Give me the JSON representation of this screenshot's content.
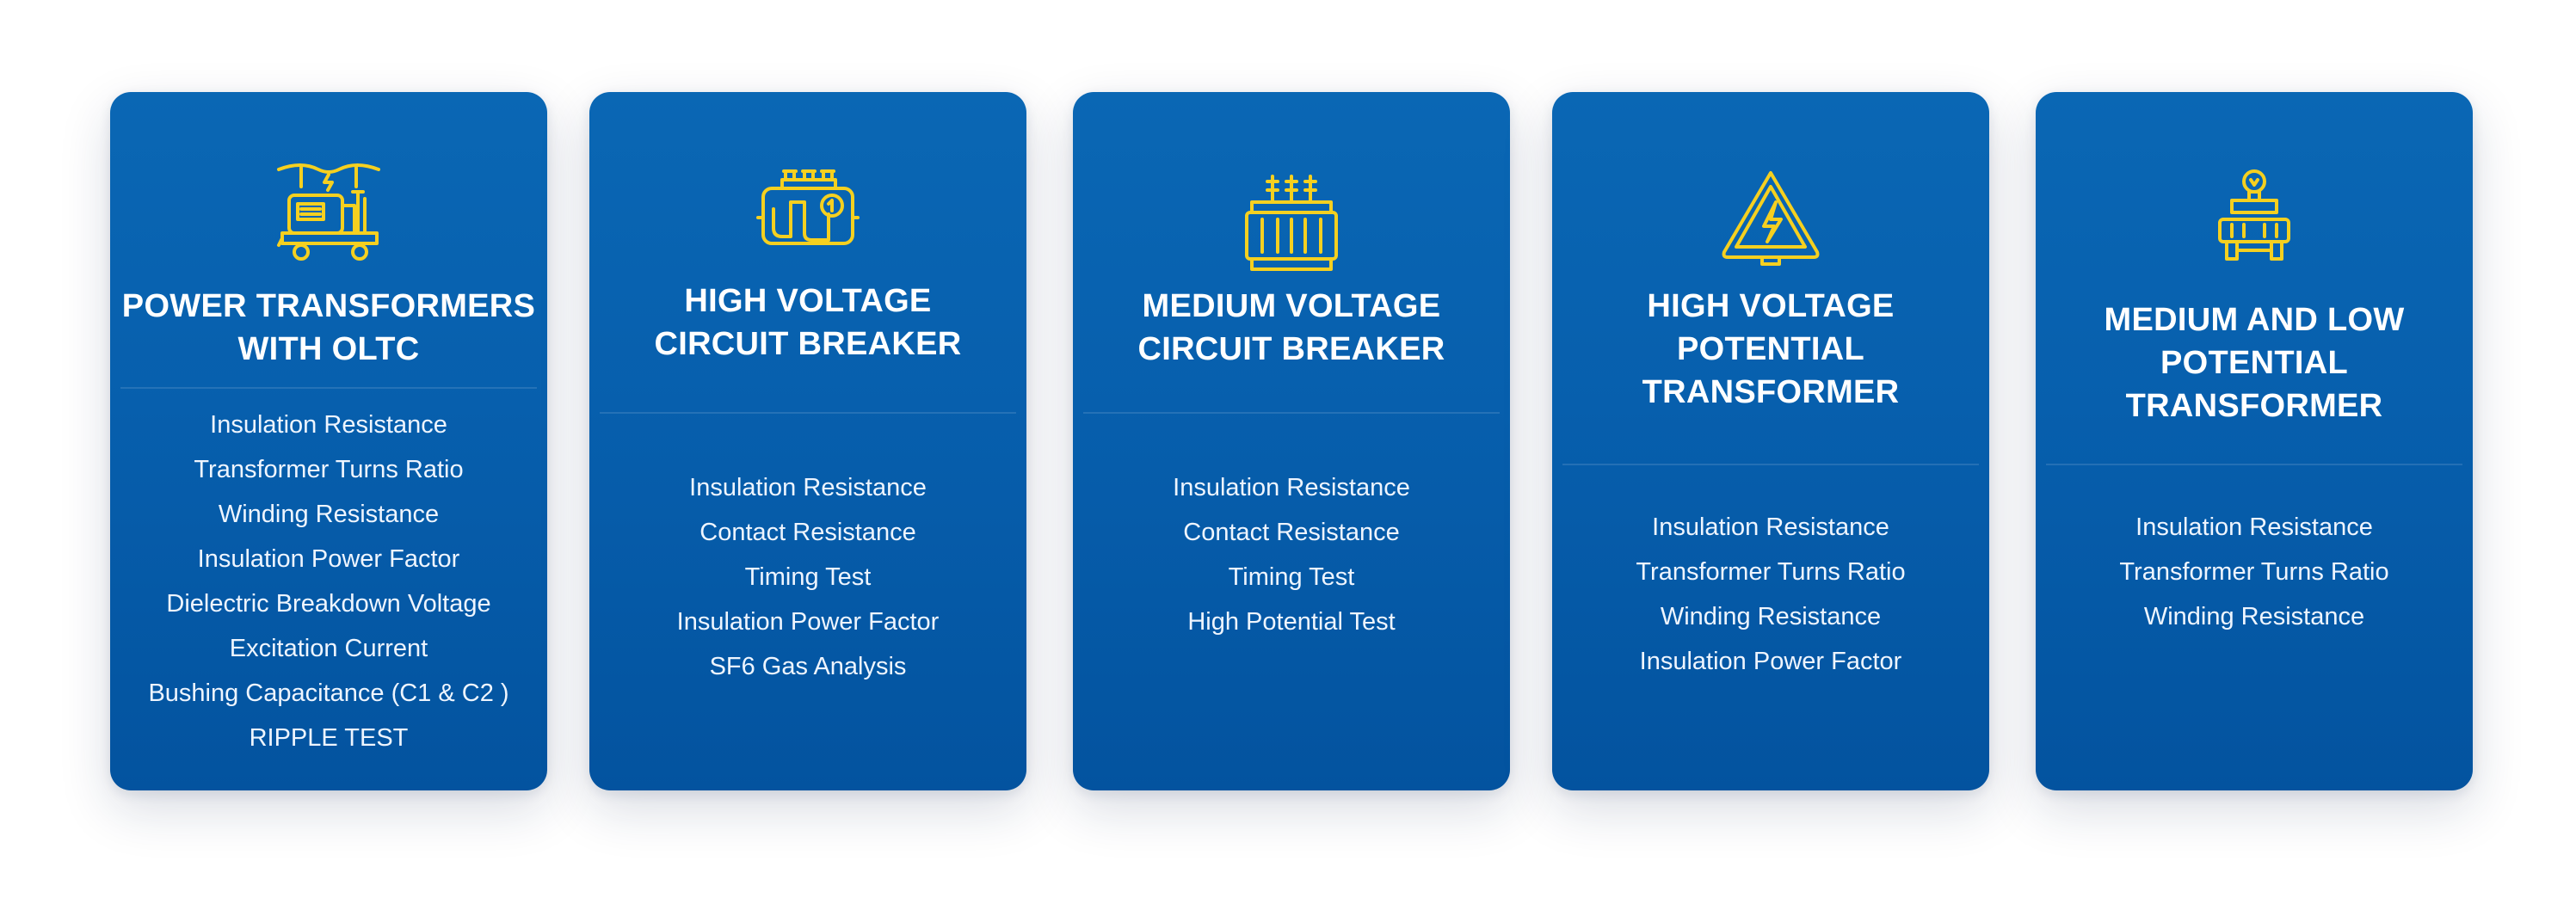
{
  "cards": [
    {
      "icon": "mobile-generator-icon",
      "title_lines": [
        "POWER TRANSFORMERS",
        "WITH OLTC"
      ],
      "items": [
        "Insulation Resistance",
        "Transformer Turns Ratio",
        "Winding Resistance",
        "Insulation Power Factor",
        "Dielectric Breakdown Voltage",
        "Excitation Current",
        "Bushing Capacitance (C1 & C2 )",
        "RIPPLE TEST"
      ]
    },
    {
      "icon": "circuit-breaker-icon",
      "title_lines": [
        "HIGH VOLTAGE",
        "CIRCUIT BREAKER"
      ],
      "items": [
        "Insulation Resistance",
        "Contact Resistance",
        "Timing Test",
        "Insulation Power Factor",
        "SF6 Gas Analysis"
      ]
    },
    {
      "icon": "transformer-icon",
      "title_lines": [
        "MEDIUM VOLTAGE",
        "CIRCUIT BREAKER"
      ],
      "items": [
        "Insulation Resistance",
        "Contact Resistance",
        "Timing Test",
        "High Potential Test"
      ]
    },
    {
      "icon": "high-voltage-warning-icon",
      "title_lines": [
        "HIGH VOLTAGE",
        "POTENTIAL",
        "TRANSFORMER"
      ],
      "items": [
        "Insulation Resistance",
        "Transformer Turns Ratio",
        "Winding Resistance",
        "Insulation Power Factor"
      ]
    },
    {
      "icon": "potential-transformer-icon",
      "title_lines": [
        "MEDIUM AND LOW",
        "POTENTIAL",
        "TRANSFORMER"
      ],
      "items": [
        "Insulation Resistance",
        "Transformer Turns Ratio",
        "Winding Resistance"
      ]
    }
  ],
  "colors": {
    "card_blue": "#0a67b4",
    "icon_yellow": "#f5d020",
    "text_white": "#ffffff"
  }
}
